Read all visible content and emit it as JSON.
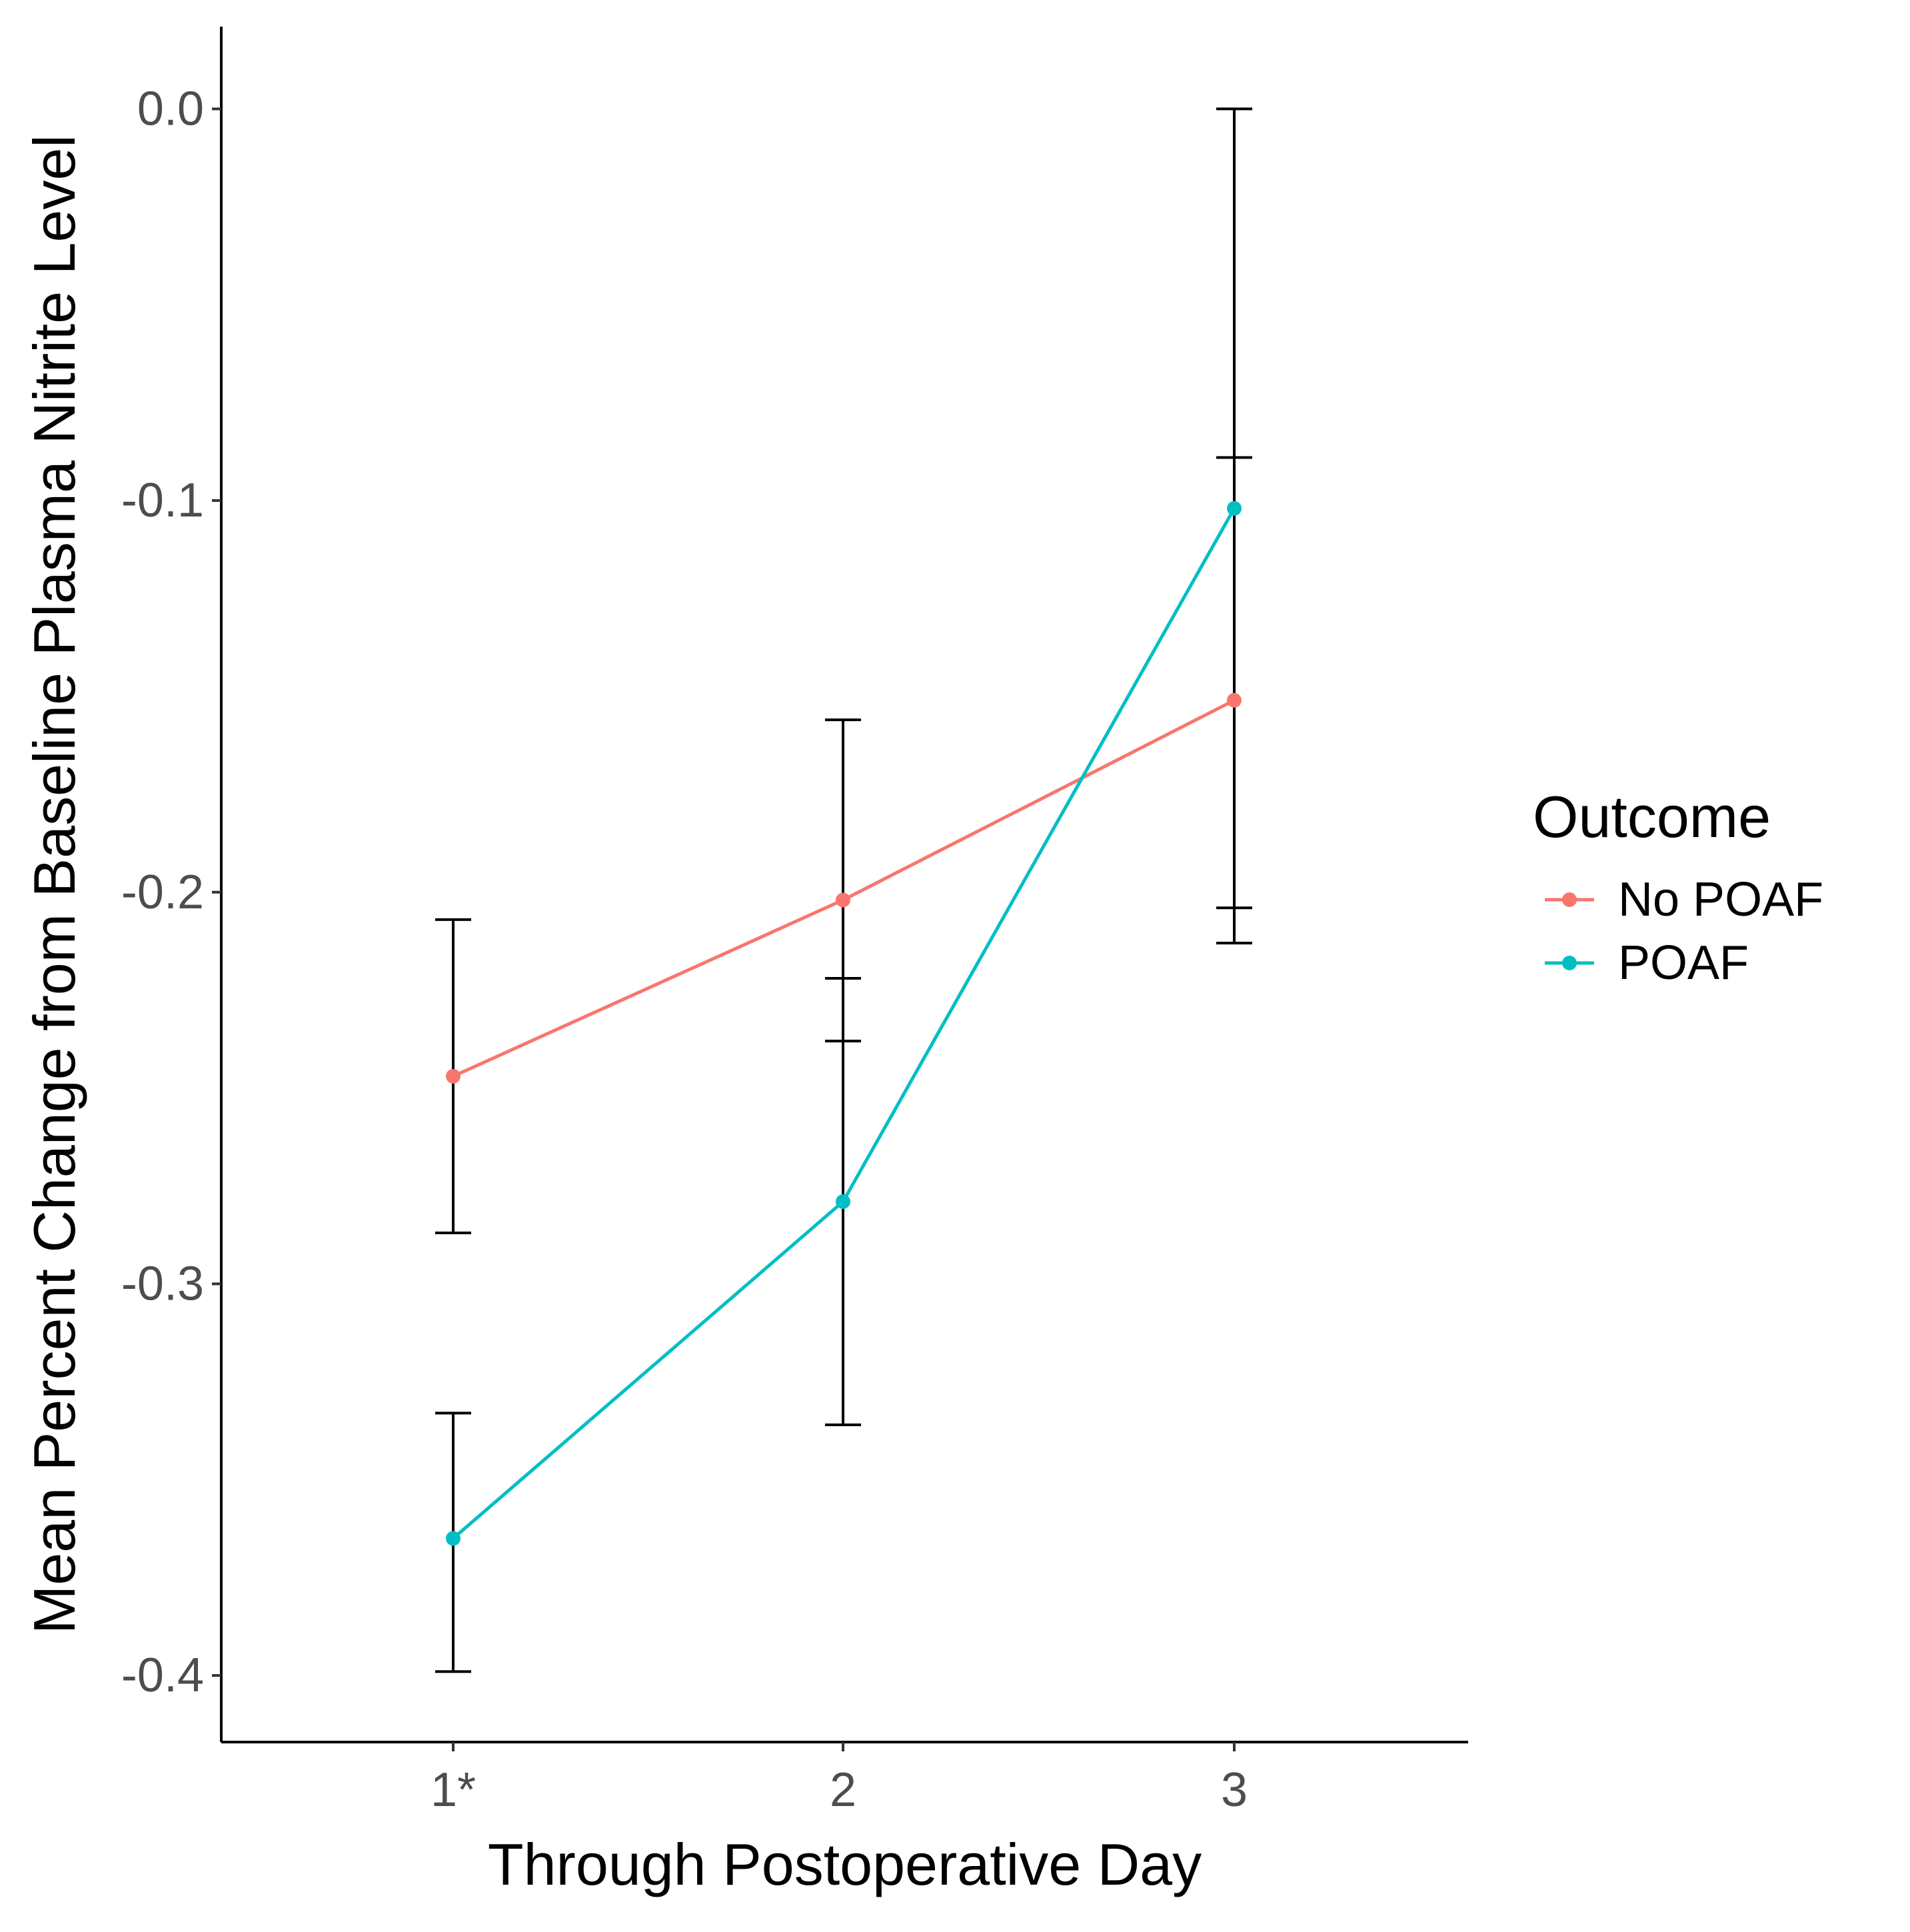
{
  "chart_data": {
    "type": "line",
    "title": "",
    "xlabel": "Through Postoperative Day",
    "ylabel": "Mean Percent Change from Baseline Plasma Nitrite Level",
    "categories": [
      "1*",
      "2",
      "3"
    ],
    "yticks": [
      "0.0",
      "-0.1",
      "-0.2",
      "-0.3",
      "-0.4"
    ],
    "ytick_values": [
      0.0,
      -0.1,
      -0.2,
      -0.3,
      -0.4
    ],
    "ylim": [
      -0.417,
      0.021
    ],
    "grid": false,
    "legend": {
      "title": "Outcome",
      "position": "right"
    },
    "series": [
      {
        "name": "No POAF",
        "color": "#F8766D",
        "values": [
          -0.247,
          -0.202,
          -0.151
        ],
        "error_low": [
          -0.287,
          -0.238,
          -0.213
        ],
        "error_high": [
          -0.207,
          -0.156,
          -0.089
        ]
      },
      {
        "name": "POAF",
        "color": "#00BFC4",
        "values": [
          -0.365,
          -0.279,
          -0.102
        ],
        "error_low": [
          -0.399,
          -0.336,
          -0.204
        ],
        "error_high": [
          -0.333,
          -0.222,
          0.0
        ]
      }
    ]
  }
}
